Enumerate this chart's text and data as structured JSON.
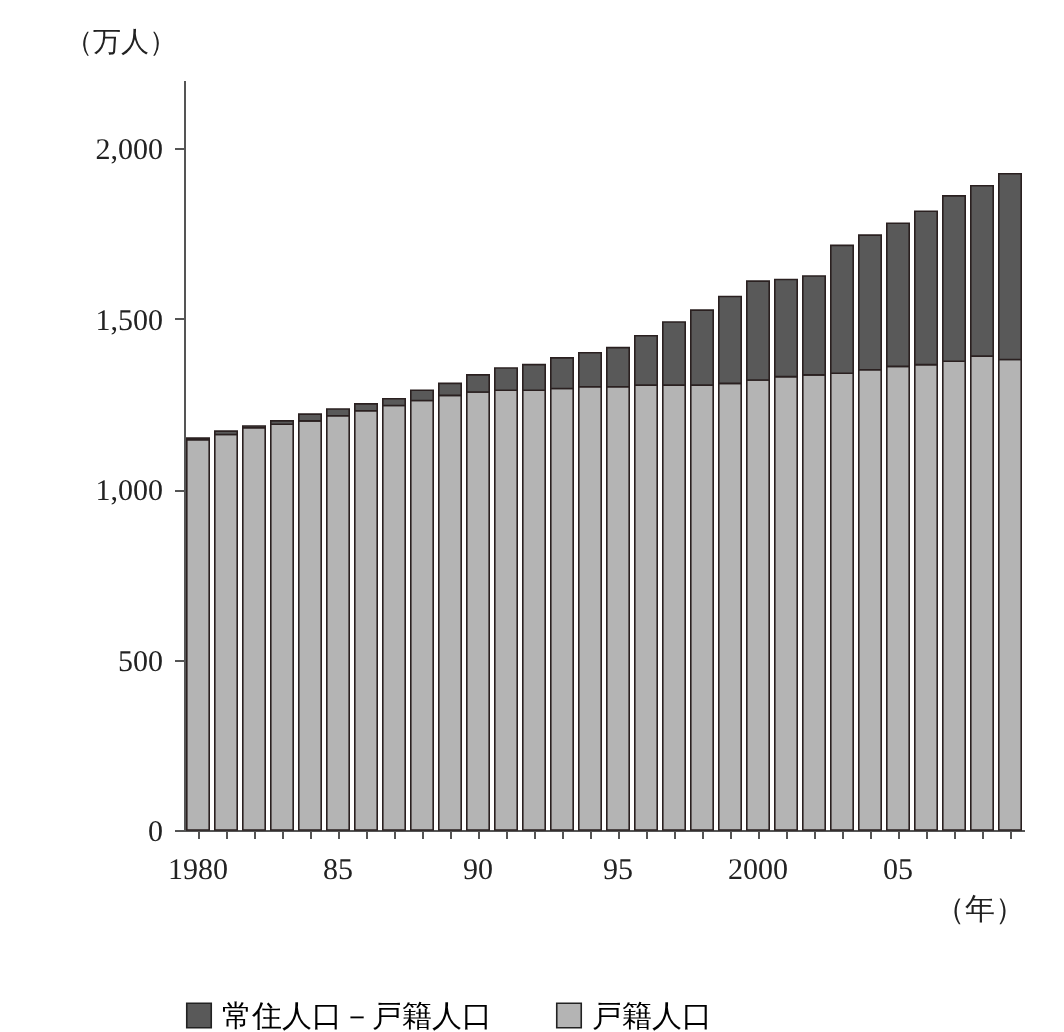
{
  "chart_data": {
    "type": "bar",
    "stacked": true,
    "xlabel": "（年）",
    "ylabel": "（万人）",
    "categories": [
      "1980",
      null,
      null,
      null,
      null,
      "85",
      null,
      null,
      null,
      null,
      "90",
      null,
      null,
      null,
      null,
      "95",
      null,
      null,
      null,
      null,
      "2000",
      null,
      null,
      null,
      null,
      "05",
      null,
      null,
      null,
      null
    ],
    "series": [
      {
        "name": "戸籍人口",
        "color": "#b4b4b4",
        "values": [
          1145,
          1160,
          1180,
          1190,
          1200,
          1215,
          1230,
          1245,
          1260,
          1275,
          1285,
          1290,
          1290,
          1295,
          1300,
          1300,
          1305,
          1305,
          1305,
          1310,
          1320,
          1330,
          1335,
          1340,
          1350,
          1360,
          1365,
          1375,
          1390,
          1380
        ]
      },
      {
        "name": "常住人口－戸籍人口",
        "color": "#595959",
        "values": [
          5,
          10,
          5,
          10,
          20,
          20,
          20,
          20,
          30,
          35,
          50,
          65,
          75,
          90,
          100,
          115,
          145,
          185,
          220,
          255,
          290,
          285,
          290,
          375,
          395,
          420,
          450,
          485,
          500,
          545
        ]
      }
    ],
    "ylim": [
      0,
      2200
    ],
    "yticks": [
      0,
      500,
      {
        "value": 1000,
        "label": "1,000"
      },
      {
        "value": 1500,
        "label": "1,500"
      },
      {
        "value": 2000,
        "label": "2,000"
      }
    ],
    "legend": "bottom",
    "grid": false
  }
}
